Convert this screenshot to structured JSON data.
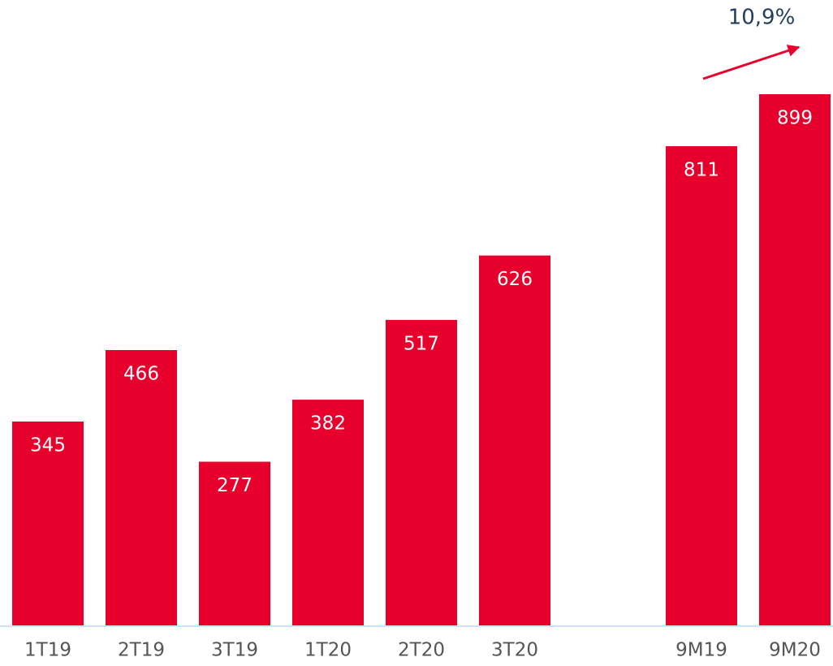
{
  "chart_data": {
    "type": "bar",
    "categories": [
      "1T19",
      "2T19",
      "3T19",
      "1T20",
      "2T20",
      "3T20",
      null,
      "9M19",
      "9M20"
    ],
    "values": [
      345,
      466,
      277,
      382,
      517,
      626,
      null,
      811,
      899
    ],
    "color": "#e8002d",
    "annotation": "10,9%"
  }
}
